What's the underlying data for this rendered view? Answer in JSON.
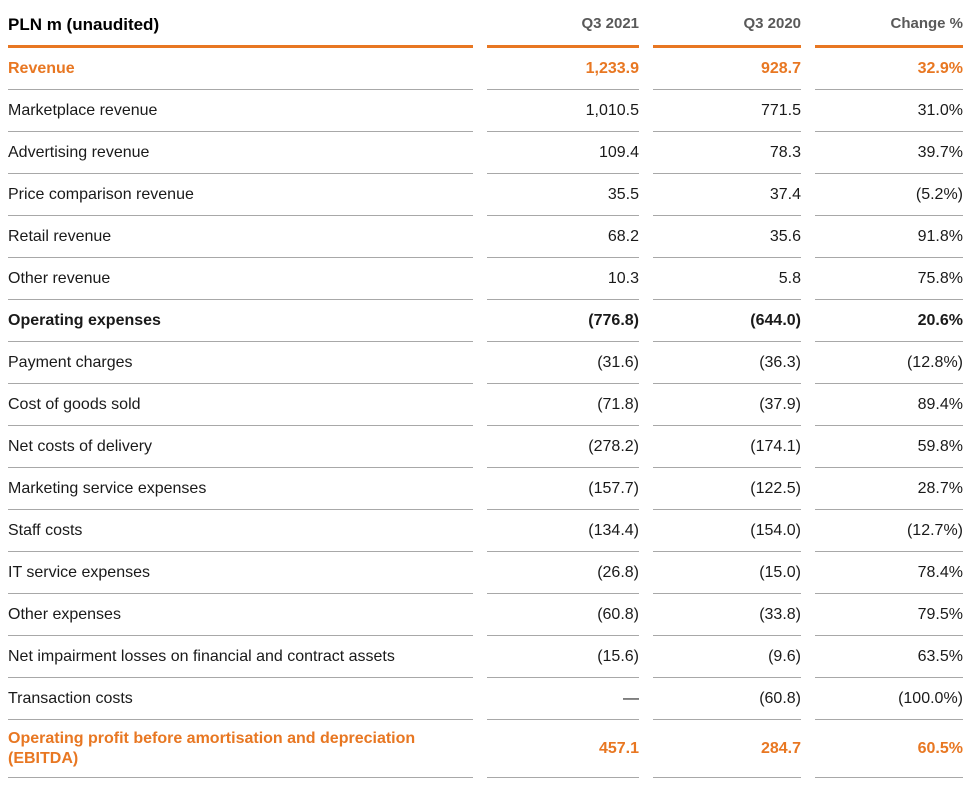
{
  "colors": {
    "accent_orange": "#e87722",
    "row_line_gray": "#a8a8a8",
    "text_dark": "#1a1a1a",
    "header_gray": "#595959"
  },
  "table": {
    "title": "PLN m (unaudited)",
    "columns": [
      "Q3 2021",
      "Q3 2020",
      "Change %"
    ],
    "rows": [
      {
        "label": "Revenue",
        "q3_2021": "1,233.9",
        "q3_2020": "928.7",
        "change": "32.9%"
      },
      {
        "label": "Marketplace revenue",
        "q3_2021": "1,010.5",
        "q3_2020": "771.5",
        "change": "31.0%"
      },
      {
        "label": "Advertising revenue",
        "q3_2021": "109.4",
        "q3_2020": "78.3",
        "change": "39.7%"
      },
      {
        "label": "Price comparison revenue",
        "q3_2021": "35.5",
        "q3_2020": "37.4",
        "change": "(5.2%)"
      },
      {
        "label": "Retail revenue",
        "q3_2021": "68.2",
        "q3_2020": "35.6",
        "change": "91.8%"
      },
      {
        "label": "Other revenue",
        "q3_2021": "10.3",
        "q3_2020": "5.8",
        "change": "75.8%"
      },
      {
        "label": "Operating expenses",
        "q3_2021": "(776.8)",
        "q3_2020": "(644.0)",
        "change": "20.6%"
      },
      {
        "label": "Payment charges",
        "q3_2021": "(31.6)",
        "q3_2020": "(36.3)",
        "change": "(12.8%)"
      },
      {
        "label": "Cost of goods sold",
        "q3_2021": "(71.8)",
        "q3_2020": "(37.9)",
        "change": "89.4%"
      },
      {
        "label": "Net costs of delivery",
        "q3_2021": "(278.2)",
        "q3_2020": "(174.1)",
        "change": "59.8%"
      },
      {
        "label": "Marketing service expenses",
        "q3_2021": "(157.7)",
        "q3_2020": "(122.5)",
        "change": "28.7%"
      },
      {
        "label": "Staff costs",
        "q3_2021": "(134.4)",
        "q3_2020": "(154.0)",
        "change": "(12.7%)"
      },
      {
        "label": "IT service expenses",
        "q3_2021": "(26.8)",
        "q3_2020": "(15.0)",
        "change": "78.4%"
      },
      {
        "label": "Other expenses",
        "q3_2021": "(60.8)",
        "q3_2020": "(33.8)",
        "change": "79.5%"
      },
      {
        "label": "Net impairment losses on financial and contract assets",
        "q3_2021": "(15.6)",
        "q3_2020": "(9.6)",
        "change": "63.5%"
      },
      {
        "label": "Transaction costs",
        "q3_2021": "—",
        "q3_2020": "(60.8)",
        "change": "(100.0%)"
      },
      {
        "label": "Operating profit before amortisation and depreciation (EBITDA)",
        "q3_2021": "457.1",
        "q3_2020": "284.7",
        "change": "60.5%"
      }
    ]
  }
}
